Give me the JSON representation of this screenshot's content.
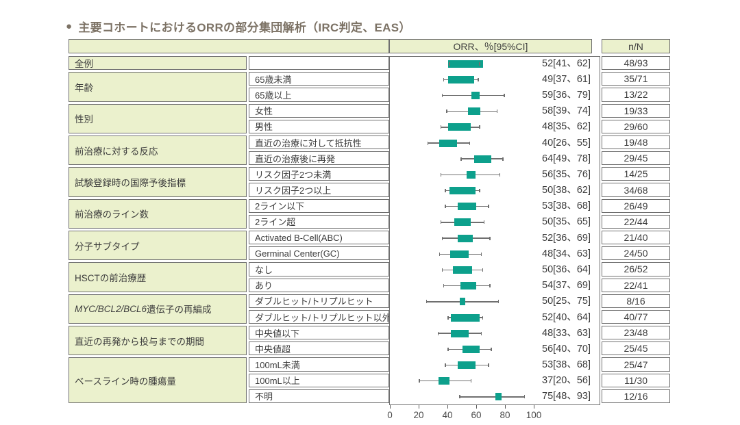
{
  "title": {
    "bullet": "●",
    "text": "主要コホートにおけるORRの部分集団解析（IRC判定、EAS）"
  },
  "header": {
    "orr": "ORR、％[95%CI]",
    "nn": "n/N"
  },
  "axis": {
    "min": 0,
    "max": 100,
    "ticks": [
      0,
      20,
      40,
      60,
      80,
      100
    ]
  },
  "colors": {
    "box_teal": "#0da08c",
    "cell_green": "#ebf1cd",
    "border_gray": "#6f6f6f",
    "whisker_gray": "#6f6f6f",
    "text_dark": "#3c3c3c",
    "title_brown": "#7c7265"
  },
  "groups": [
    {
      "category": "全例",
      "rows": [
        {
          "subgroup": "",
          "value": 52,
          "lo": 41,
          "hi": 62,
          "label": "52[41、62]",
          "nN": "48/93",
          "n": 48,
          "N": 93
        }
      ]
    },
    {
      "category": "年齢",
      "rows": [
        {
          "subgroup": "65歳未満",
          "value": 49,
          "lo": 37,
          "hi": 61,
          "label": "49[37、61]",
          "nN": "35/71",
          "n": 35,
          "N": 71
        },
        {
          "subgroup": "65歳以上",
          "value": 59,
          "lo": 36,
          "hi": 79,
          "label": "59[36、79]",
          "nN": "13/22",
          "n": 13,
          "N": 22
        }
      ]
    },
    {
      "category": "性別",
      "rows": [
        {
          "subgroup": "女性",
          "value": 58,
          "lo": 39,
          "hi": 74,
          "label": "58[39、74]",
          "nN": "19/33",
          "n": 19,
          "N": 33
        },
        {
          "subgroup": "男性",
          "value": 48,
          "lo": 35,
          "hi": 62,
          "label": "48[35、62]",
          "nN": "29/60",
          "n": 29,
          "N": 60
        }
      ]
    },
    {
      "category": "前治療に対する反応",
      "rows": [
        {
          "subgroup": "直近の治療に対して抵抗性",
          "value": 40,
          "lo": 26,
          "hi": 55,
          "label": "40[26、55]",
          "nN": "19/48",
          "n": 19,
          "N": 48
        },
        {
          "subgroup": "直近の治療後に再発",
          "value": 64,
          "lo": 49,
          "hi": 78,
          "label": "64[49、78]",
          "nN": "29/45",
          "n": 29,
          "N": 45
        }
      ]
    },
    {
      "category": "試験登録時の国際予後指標",
      "rows": [
        {
          "subgroup": "リスク因子2つ未満",
          "value": 56,
          "lo": 35,
          "hi": 76,
          "label": "56[35、76]",
          "nN": "14/25",
          "n": 14,
          "N": 25
        },
        {
          "subgroup": "リスク因子2つ以上",
          "value": 50,
          "lo": 38,
          "hi": 62,
          "label": "50[38、62]",
          "nN": "34/68",
          "n": 34,
          "N": 68
        }
      ]
    },
    {
      "category": "前治療のライン数",
      "rows": [
        {
          "subgroup": "2ライン以下",
          "value": 53,
          "lo": 38,
          "hi": 68,
          "label": "53[38、68]",
          "nN": "26/49",
          "n": 26,
          "N": 49
        },
        {
          "subgroup": "2ライン超",
          "value": 50,
          "lo": 35,
          "hi": 65,
          "label": "50[35、65]",
          "nN": "22/44",
          "n": 22,
          "N": 44
        }
      ]
    },
    {
      "category": "分子サブタイプ",
      "rows": [
        {
          "subgroup": "Activated B-Cell(ABC)",
          "value": 52,
          "lo": 36,
          "hi": 69,
          "label": "52[36、69]",
          "nN": "21/40",
          "n": 21,
          "N": 40
        },
        {
          "subgroup": "Germinal Center(GC)",
          "value": 48,
          "lo": 34,
          "hi": 63,
          "label": "48[34、63]",
          "nN": "24/50",
          "n": 24,
          "N": 50
        }
      ]
    },
    {
      "category": "HSCTの前治療歴",
      "rows": [
        {
          "subgroup": "なし",
          "value": 50,
          "lo": 36,
          "hi": 64,
          "label": "50[36、64]",
          "nN": "26/52",
          "n": 26,
          "N": 52
        },
        {
          "subgroup": "あり",
          "value": 54,
          "lo": 37,
          "hi": 69,
          "label": "54[37、69]",
          "nN": "22/41",
          "n": 22,
          "N": 41
        }
      ]
    },
    {
      "category_italic": "MYC/BCL2/BCL6",
      "category": "遺伝子の再編成",
      "rows": [
        {
          "subgroup": "ダブルヒット/トリプルヒット",
          "value": 50,
          "lo": 25,
          "hi": 75,
          "label": "50[25、75]",
          "nN": "8/16",
          "n": 8,
          "N": 16
        },
        {
          "subgroup": "ダブルヒット/トリプルヒット以外",
          "value": 52,
          "lo": 40,
          "hi": 64,
          "label": "52[40、64]",
          "nN": "40/77",
          "n": 40,
          "N": 77
        }
      ]
    },
    {
      "category": "直近の再発から投与までの期間",
      "rows": [
        {
          "subgroup": "中央値以下",
          "value": 48,
          "lo": 33,
          "hi": 63,
          "label": "48[33、63]",
          "nN": "23/48",
          "n": 23,
          "N": 48
        },
        {
          "subgroup": "中央値超",
          "value": 56,
          "lo": 40,
          "hi": 70,
          "label": "56[40、70]",
          "nN": "25/45",
          "n": 25,
          "N": 45
        }
      ]
    },
    {
      "category": "ベースライン時の腫瘍量",
      "rows": [
        {
          "subgroup": "100mL未満",
          "value": 53,
          "lo": 38,
          "hi": 68,
          "label": "53[38、68]",
          "nN": "25/47",
          "n": 25,
          "N": 47
        },
        {
          "subgroup": "100mL以上",
          "value": 37,
          "lo": 20,
          "hi": 56,
          "label": "37[20、56]",
          "nN": "11/30",
          "n": 11,
          "N": 30
        },
        {
          "subgroup": "不明",
          "value": 75,
          "lo": 48,
          "hi": 93,
          "label": "75[48、93]",
          "nN": "12/16",
          "n": 12,
          "N": 16
        }
      ]
    }
  ],
  "chart_data": {
    "type": "scatter",
    "subtype": "forest-plot",
    "title": "主要コホートにおけるORRの部分集団解析（IRC判定、EAS）",
    "xlabel": "ORR、％[95%CI]",
    "xlim": [
      0,
      100
    ],
    "x_ticks": [
      0,
      20,
      40,
      60,
      80,
      100
    ],
    "grid": false,
    "legend": false,
    "marker_note": "teal box centered on ORR point estimate, box width proportional to N; gray whisker spans 95% CI",
    "rows": [
      {
        "category": "全例",
        "subgroup": "",
        "orr": 52,
        "ci95": [
          41,
          62
        ],
        "n": 48,
        "N": 93
      },
      {
        "category": "年齢",
        "subgroup": "65歳未満",
        "orr": 49,
        "ci95": [
          37,
          61
        ],
        "n": 35,
        "N": 71
      },
      {
        "category": "年齢",
        "subgroup": "65歳以上",
        "orr": 59,
        "ci95": [
          36,
          79
        ],
        "n": 13,
        "N": 22
      },
      {
        "category": "性別",
        "subgroup": "女性",
        "orr": 58,
        "ci95": [
          39,
          74
        ],
        "n": 19,
        "N": 33
      },
      {
        "category": "性別",
        "subgroup": "男性",
        "orr": 48,
        "ci95": [
          35,
          62
        ],
        "n": 29,
        "N": 60
      },
      {
        "category": "前治療に対する反応",
        "subgroup": "直近の治療に対して抵抗性",
        "orr": 40,
        "ci95": [
          26,
          55
        ],
        "n": 19,
        "N": 48
      },
      {
        "category": "前治療に対する反応",
        "subgroup": "直近の治療後に再発",
        "orr": 64,
        "ci95": [
          49,
          78
        ],
        "n": 29,
        "N": 45
      },
      {
        "category": "試験登録時の国際予後指標",
        "subgroup": "リスク因子2つ未満",
        "orr": 56,
        "ci95": [
          35,
          76
        ],
        "n": 14,
        "N": 25
      },
      {
        "category": "試験登録時の国際予後指標",
        "subgroup": "リスク因子2つ以上",
        "orr": 50,
        "ci95": [
          38,
          62
        ],
        "n": 34,
        "N": 68
      },
      {
        "category": "前治療のライン数",
        "subgroup": "2ライン以下",
        "orr": 53,
        "ci95": [
          38,
          68
        ],
        "n": 26,
        "N": 49
      },
      {
        "category": "前治療のライン数",
        "subgroup": "2ライン超",
        "orr": 50,
        "ci95": [
          35,
          65
        ],
        "n": 22,
        "N": 44
      },
      {
        "category": "分子サブタイプ",
        "subgroup": "Activated B-Cell(ABC)",
        "orr": 52,
        "ci95": [
          36,
          69
        ],
        "n": 21,
        "N": 40
      },
      {
        "category": "分子サブタイプ",
        "subgroup": "Germinal Center(GC)",
        "orr": 48,
        "ci95": [
          34,
          63
        ],
        "n": 24,
        "N": 50
      },
      {
        "category": "HSCTの前治療歴",
        "subgroup": "なし",
        "orr": 50,
        "ci95": [
          36,
          64
        ],
        "n": 26,
        "N": 52
      },
      {
        "category": "HSCTの前治療歴",
        "subgroup": "あり",
        "orr": 54,
        "ci95": [
          37,
          69
        ],
        "n": 22,
        "N": 41
      },
      {
        "category": "MYC/BCL2/BCL6遺伝子の再編成",
        "subgroup": "ダブルヒット/トリプルヒット",
        "orr": 50,
        "ci95": [
          25,
          75
        ],
        "n": 8,
        "N": 16
      },
      {
        "category": "MYC/BCL2/BCL6遺伝子の再編成",
        "subgroup": "ダブルヒット/トリプルヒット以外",
        "orr": 52,
        "ci95": [
          40,
          64
        ],
        "n": 40,
        "N": 77
      },
      {
        "category": "直近の再発から投与までの期間",
        "subgroup": "中央値以下",
        "orr": 48,
        "ci95": [
          33,
          63
        ],
        "n": 23,
        "N": 48
      },
      {
        "category": "直近の再発から投与までの期間",
        "subgroup": "中央値超",
        "orr": 56,
        "ci95": [
          40,
          70
        ],
        "n": 25,
        "N": 45
      },
      {
        "category": "ベースライン時の腫瘍量",
        "subgroup": "100mL未満",
        "orr": 53,
        "ci95": [
          38,
          68
        ],
        "n": 25,
        "N": 47
      },
      {
        "category": "ベースライン時の腫瘍量",
        "subgroup": "100mL以上",
        "orr": 37,
        "ci95": [
          20,
          56
        ],
        "n": 11,
        "N": 30
      },
      {
        "category": "ベースライン時の腫瘍量",
        "subgroup": "不明",
        "orr": 75,
        "ci95": [
          48,
          93
        ],
        "n": 12,
        "N": 16
      }
    ]
  }
}
